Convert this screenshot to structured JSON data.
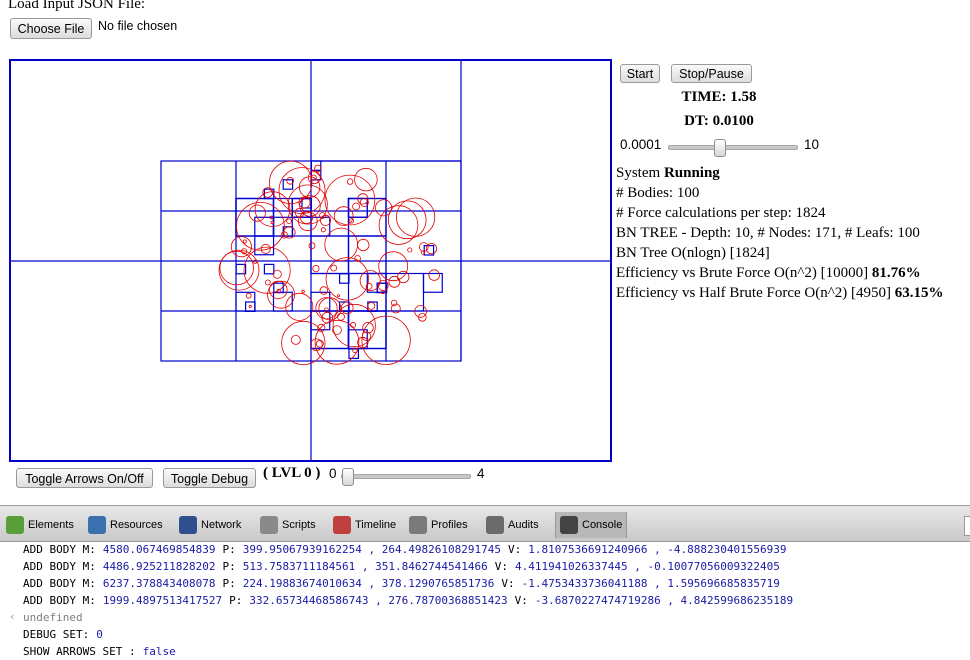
{
  "header": {
    "label": "Load Input JSON File:",
    "file_button": "Choose File",
    "file_status": "No file chosen"
  },
  "controls": {
    "start": "Start",
    "stop": "Stop/Pause",
    "time": "TIME: 1.58",
    "dt": "DT: 0.0100",
    "dt_min": "0.0001",
    "dt_max": "10"
  },
  "status": {
    "system_label": "System",
    "system_state": "Running",
    "lines": [
      "# Bodies: 100",
      "# Force calculations per step: 1824",
      "BN TREE - Depth: 10, # Nodes: 171, # Leafs: 100",
      "BN Tree O(nlogn) [1824]"
    ],
    "efficiency": [
      {
        "label": "Efficiency vs Brute Force O(n^2) [10000]",
        "value": "81.76%"
      },
      {
        "label": "Efficiency vs Half Brute Force O(n^2) [4950]",
        "value": "63.15%"
      }
    ]
  },
  "bottom": {
    "toggle_arrows": "Toggle Arrows On/Off",
    "toggle_debug": "Toggle Debug",
    "level": "( LVL 0 )",
    "level_min": "0",
    "level_max": "4"
  },
  "devtools": {
    "tabs": [
      "Elements",
      "Resources",
      "Network",
      "Scripts",
      "Timeline",
      "Profiles",
      "Audits",
      "Console"
    ],
    "console": [
      {
        "kind": "log",
        "parts": [
          "ADD BODY M:",
          "4580.067469854839",
          "P:",
          "399.95067939162254 , 264.49826108291745",
          "V:",
          "1.8107536691240966 , -4.888230401556939"
        ]
      },
      {
        "kind": "log",
        "parts": [
          "ADD BODY M:",
          "4486.925211828202",
          "P:",
          "513.7583711184561 , 351.8462744541466",
          "V:",
          "4.411941026337445 , -0.10077056009322405"
        ]
      },
      {
        "kind": "log",
        "parts": [
          "ADD BODY M:",
          "6237.378843408078",
          "P:",
          "224.19883674010634 , 378.1290765851736",
          "V:",
          "-1.4753433736041188 , 1.595696685835719"
        ]
      },
      {
        "kind": "log",
        "parts": [
          "ADD BODY M:",
          "1999.4897513417527",
          "P:",
          "332.65734468586743 , 276.78700368851423",
          "V:",
          "-3.6870227474719286 , 4.842599686235189"
        ]
      },
      {
        "kind": "result",
        "parts": [
          "undefined"
        ]
      },
      {
        "kind": "log",
        "parts": [
          "DEBUG SET:",
          "0"
        ]
      },
      {
        "kind": "log",
        "parts": [
          "SHOW ARROWS SET :",
          "false"
        ]
      }
    ]
  }
}
